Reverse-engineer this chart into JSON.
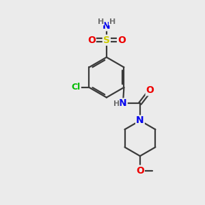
{
  "bg_color": "#ebebeb",
  "atom_colors": {
    "C": "#3a3a3a",
    "N": "#0000ee",
    "O": "#ee0000",
    "S": "#cccc00",
    "Cl": "#00bb00",
    "H": "#707070"
  },
  "bond_color": "#3a3a3a",
  "figsize": [
    3.0,
    3.0
  ],
  "dpi": 100
}
